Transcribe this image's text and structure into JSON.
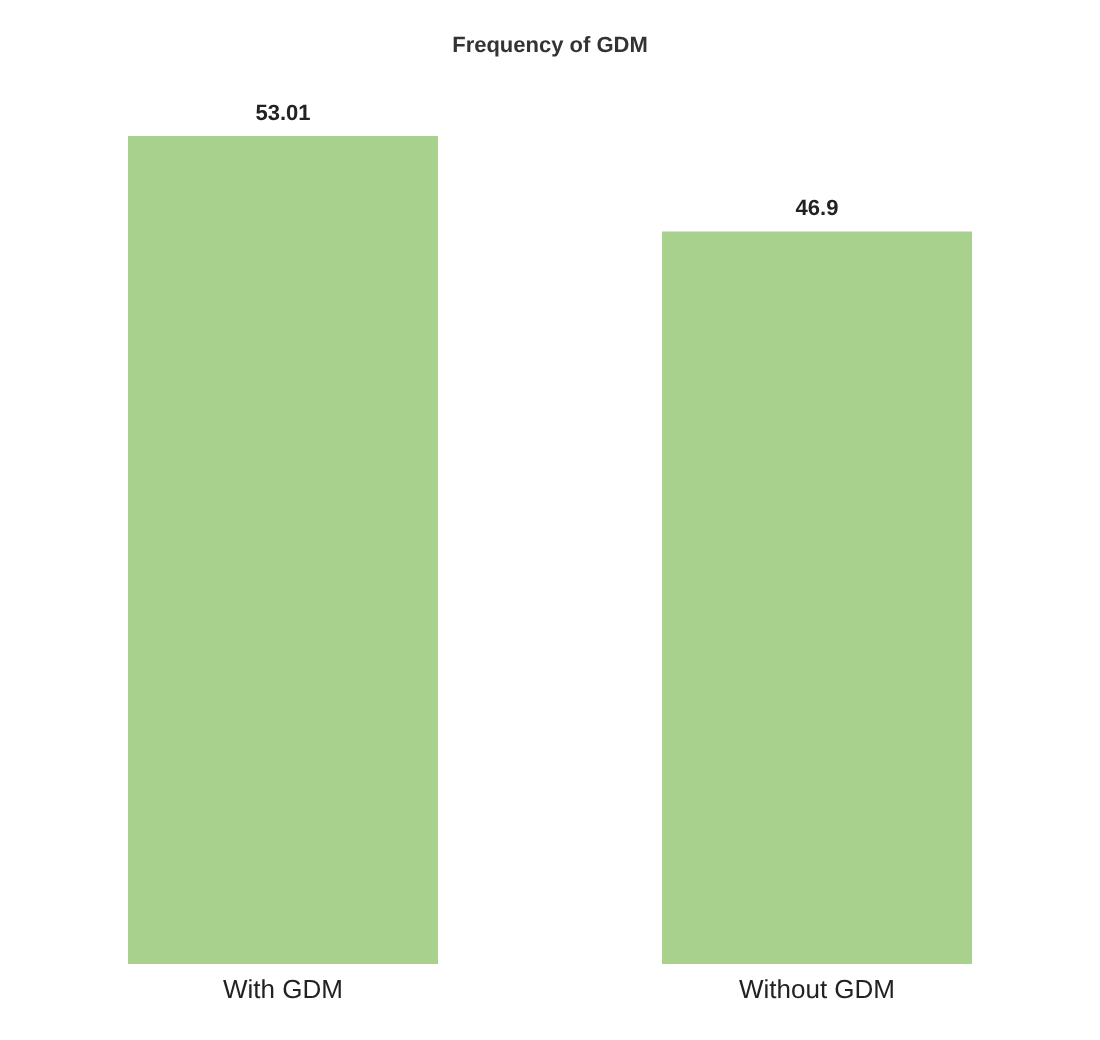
{
  "chart_data": {
    "type": "bar",
    "title": "Frequency of GDM",
    "categories": [
      "With GDM",
      "Without GDM"
    ],
    "values": [
      53.01,
      46.9
    ],
    "color": "#a9d18e",
    "data_labels": true,
    "grid": false
  }
}
